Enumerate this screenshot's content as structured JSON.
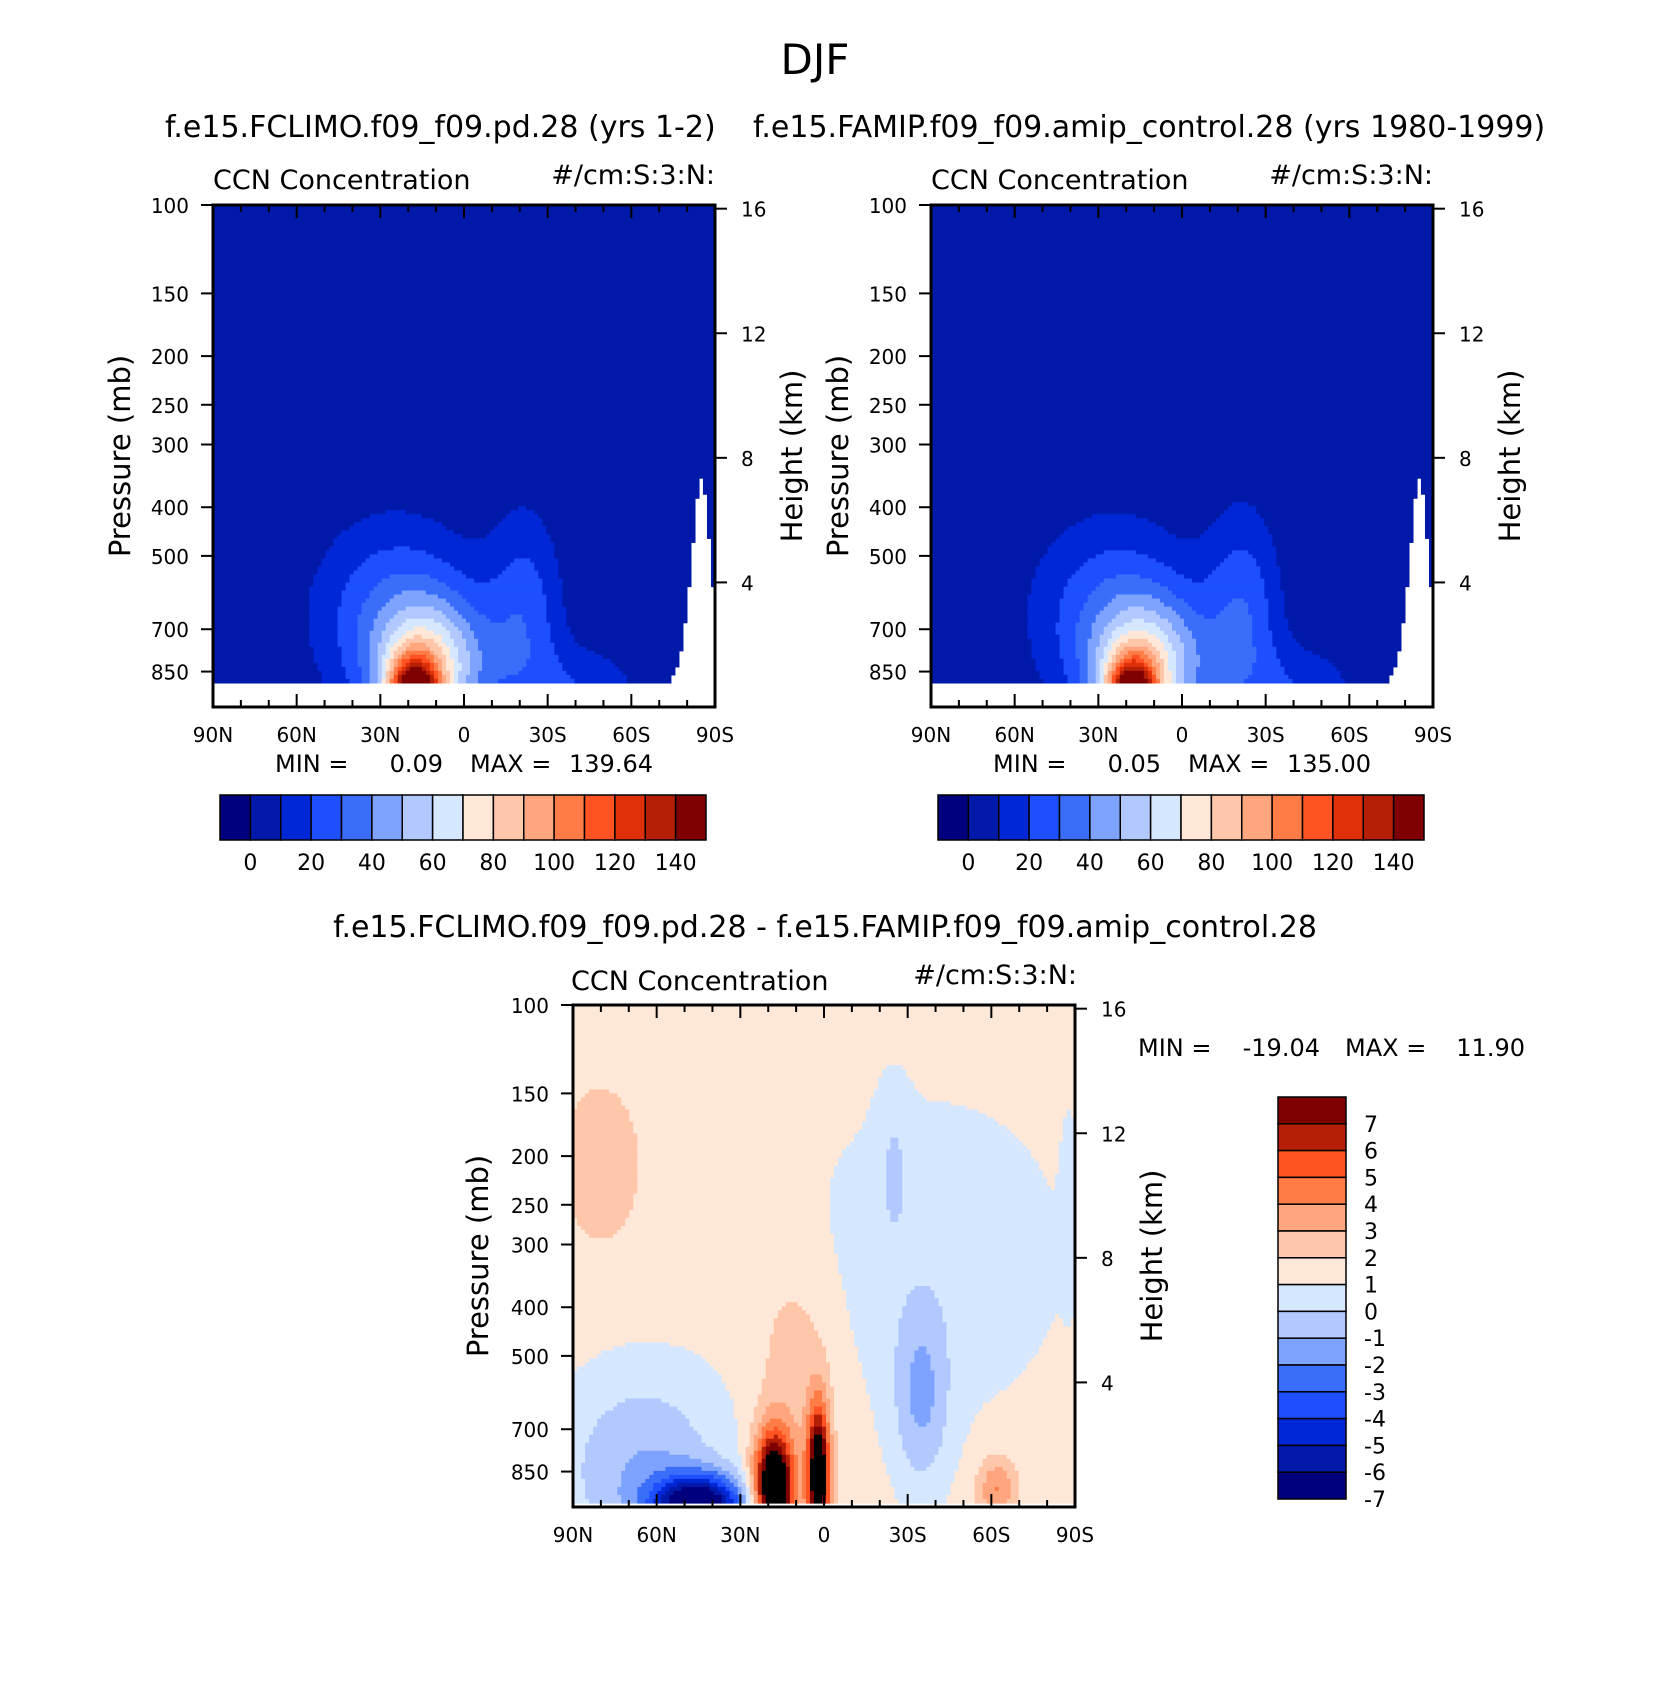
{
  "chart_data": {
    "type": "heatmap",
    "title": "DJF",
    "colors": {
      "abs": [
        "#00007f",
        "#0019a8",
        "#0027d6",
        "#1d4fff",
        "#3a6dfa",
        "#7ea3ff",
        "#b2c9ff",
        "#d6e8ff",
        "#ffe8d7",
        "#ffc7aa",
        "#ffa67e",
        "#ff7c47",
        "#ff5324",
        "#e03009",
        "#b51f05",
        "#7f0000"
      ],
      "diff": [
        "#7f0000",
        "#b51f05",
        "#ff5324",
        "#ff7c47",
        "#ffa67e",
        "#ffc7aa",
        "#ffe8d7",
        "#d6e8ff",
        "#b2c9ff",
        "#7ea3ff",
        "#3a6dfa",
        "#1d4fff",
        "#0027d6",
        "#0019a8",
        "#00007f"
      ]
    },
    "panels": [
      {
        "id": "a",
        "case": "f.e15.FCLIMO.f09_f09.pd.28 (yrs 1-2)",
        "left_label": "CCN Concentration",
        "right_label": "#/cm:S:3:N:",
        "ylabel": "Pressure (mb)",
        "y2label": "Height (km)",
        "xticks": [
          "90N",
          "60N",
          "30N",
          "0",
          "30S",
          "60S",
          "90S"
        ],
        "yticks": [
          "100",
          "150",
          "200",
          "250",
          "300",
          "400",
          "500",
          "700",
          "850"
        ],
        "y2ticks": [
          "16",
          "12",
          "8",
          "4"
        ],
        "min_label": "MIN =",
        "min": "0.09",
        "max_label": "MAX =",
        "max": "139.64",
        "levels": [
          0,
          10,
          20,
          30,
          40,
          50,
          60,
          70,
          80,
          90,
          100,
          110,
          120,
          130,
          140
        ],
        "colorbar_labels": [
          "0",
          "20",
          "40",
          "60",
          "80",
          "100",
          "120",
          "140"
        ],
        "peak": 139.64
      },
      {
        "id": "b",
        "case": "f.e15.FAMIP.f09_f09.amip_control.28 (yrs 1980-1999)",
        "left_label": "CCN Concentration",
        "right_label": "#/cm:S:3:N:",
        "ylabel": "Pressure (mb)",
        "y2label": "Height (km)",
        "xticks": [
          "90N",
          "60N",
          "30N",
          "0",
          "30S",
          "60S",
          "90S"
        ],
        "yticks": [
          "100",
          "150",
          "200",
          "250",
          "300",
          "400",
          "500",
          "700",
          "850"
        ],
        "y2ticks": [
          "16",
          "12",
          "8",
          "4"
        ],
        "min_label": "MIN =",
        "min": "0.05",
        "max_label": "MAX =",
        "max": "135.00",
        "levels": [
          0,
          10,
          20,
          30,
          40,
          50,
          60,
          70,
          80,
          90,
          100,
          110,
          120,
          130,
          140
        ],
        "colorbar_labels": [
          "0",
          "20",
          "40",
          "60",
          "80",
          "100",
          "120",
          "140"
        ],
        "peak": 135.0
      },
      {
        "id": "c",
        "case": "f.e15.FCLIMO.f09_f09.pd.28 - f.e15.FAMIP.f09_f09.amip_control.28",
        "left_label": "CCN Concentration",
        "right_label": "#/cm:S:3:N:",
        "ylabel": "Pressure (mb)",
        "y2label": "Height (km)",
        "xticks": [
          "90N",
          "60N",
          "30N",
          "0",
          "30S",
          "60S",
          "90S"
        ],
        "yticks": [
          "100",
          "150",
          "200",
          "250",
          "300",
          "400",
          "500",
          "700",
          "850"
        ],
        "y2ticks": [
          "16",
          "12",
          "8",
          "4"
        ],
        "min_label": "MIN =",
        "min": "-19.04",
        "max_label": "MAX =",
        "max": "11.90",
        "levels": [
          -7,
          -6,
          -5,
          -4,
          -3,
          -2,
          -1,
          0,
          1,
          2,
          3,
          4,
          5,
          6,
          7
        ],
        "colorbar_labels": [
          "7",
          "6",
          "5",
          "4",
          "3",
          "2",
          "1",
          "0",
          "-1",
          "-2",
          "-3",
          "-4",
          "-5",
          "-6",
          "-7"
        ]
      }
    ]
  }
}
